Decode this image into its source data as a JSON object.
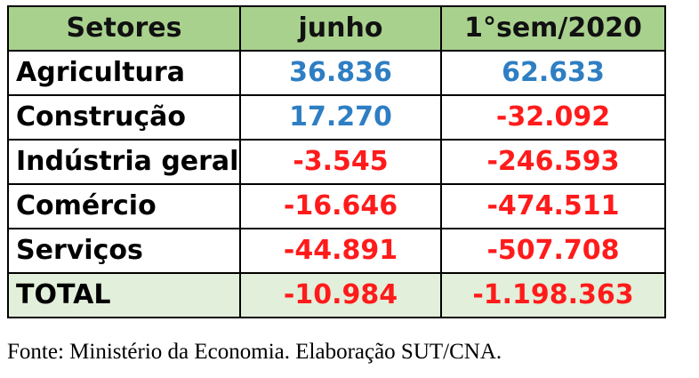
{
  "table": {
    "headers": [
      "Setores",
      "junho",
      "1°sem/2020"
    ],
    "rows": [
      {
        "sector": "Agricultura",
        "june": "36.836",
        "june_sign": "pos",
        "semester": "62.633",
        "semester_sign": "pos"
      },
      {
        "sector": "Construção",
        "june": "17.270",
        "june_sign": "pos",
        "semester": "-32.092",
        "semester_sign": "neg"
      },
      {
        "sector": "Indústria geral",
        "june": "-3.545",
        "june_sign": "neg",
        "semester": "-246.593",
        "semester_sign": "neg"
      },
      {
        "sector": "Comércio",
        "june": "-16.646",
        "june_sign": "neg",
        "semester": "-474.511",
        "semester_sign": "neg"
      },
      {
        "sector": "Serviços",
        "june": "-44.891",
        "june_sign": "neg",
        "semester": "-507.708",
        "semester_sign": "neg"
      }
    ],
    "total": {
      "sector": "TOTAL",
      "june": "-10.984",
      "semester": "-1.198.363"
    }
  },
  "colors": {
    "header_bg": "#a9d18e",
    "total_bg": "#e2efda",
    "positive": "#2e7ec3",
    "negative": "#ff1b1b"
  },
  "source": "Fonte: Ministério da Economia. Elaboração SUT/CNA."
}
